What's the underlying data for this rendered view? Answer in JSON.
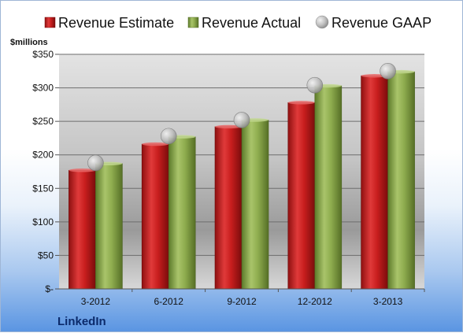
{
  "chart_data": {
    "type": "bar",
    "title": "",
    "unit_label": "$millions",
    "categories": [
      "3-2012",
      "6-2012",
      "9-2012",
      "12-2012",
      "3-2013"
    ],
    "series": [
      {
        "name": "Revenue Estimate",
        "kind": "bar",
        "color": "#d42a2a",
        "values": [
          177,
          216,
          242,
          278,
          318
        ]
      },
      {
        "name": "Revenue Actual",
        "kind": "bar",
        "color": "#8fad4f",
        "values": [
          187,
          227,
          252,
          303,
          324
        ]
      },
      {
        "name": "Revenue GAAP",
        "kind": "marker",
        "color": "#b9b9b9",
        "values": [
          188,
          228,
          252,
          304,
          325
        ]
      }
    ],
    "ylim": [
      0,
      350
    ],
    "yticks": [
      0,
      50,
      100,
      150,
      200,
      250,
      300,
      350
    ],
    "ytick_labels": [
      "$-",
      "$50",
      "$100",
      "$150",
      "$200",
      "$250",
      "$300",
      "$350"
    ],
    "grid": true,
    "legend_position": "top"
  },
  "company": "LinkedIn"
}
